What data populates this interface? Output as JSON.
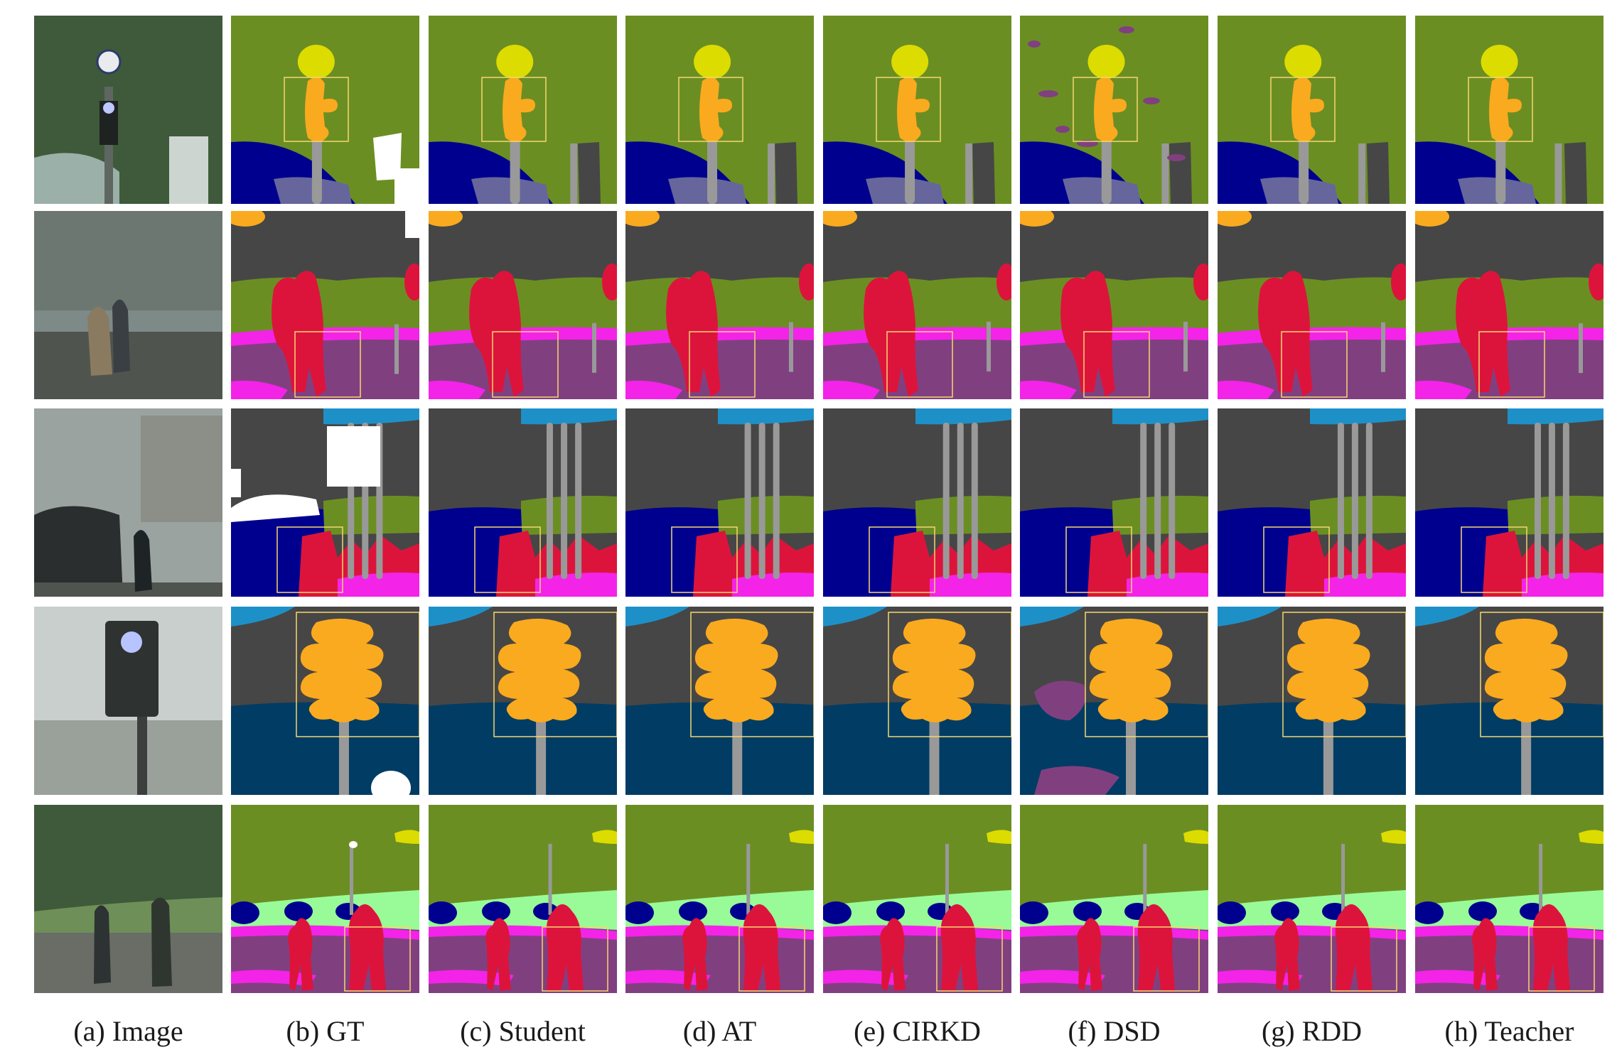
{
  "figure": {
    "captions": [
      "(a) Image",
      "(b) GT",
      "(c) Student",
      "(d) AT",
      "(e) CIRKD",
      "(f) DSD",
      "(g) RDD",
      "(h) Teacher"
    ],
    "rows": [
      "traffic-light-pole",
      "pedestrians-crossing",
      "pedestrians-car",
      "traffic-light-closeup",
      "pedestrians-road"
    ]
  },
  "palette": {
    "vegetation": "#6b8e23",
    "building": "#464646",
    "road": "#804080",
    "sidewalk": "#f423e8",
    "person": "#dc143c",
    "car": "#00008e",
    "traffic_light": "#faaa1e",
    "traffic_sign": "#dcdc00",
    "pole": "#999999",
    "sky": "#4682b4",
    "terrain": "#98fb98",
    "wall": "#66669c",
    "bus": "#003c64",
    "void": "#ffffff",
    "highlight_box": "#f5d76e"
  }
}
